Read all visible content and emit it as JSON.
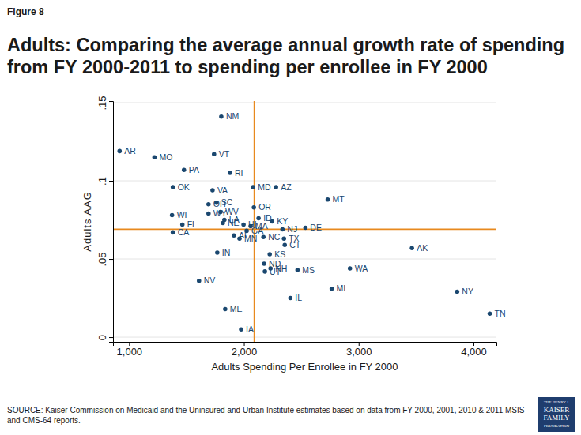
{
  "chart_data": {
    "type": "scatter",
    "figure_label": "Figure 8",
    "title": "Adults: Comparing the average annual growth rate of spending from FY 2000-2011 to spending per enrollee in FY 2000",
    "x_label": "Adults Spending Per Enrollee in FY 2000",
    "y_label": "Adults AAG",
    "source": "SOURCE: Kaiser Commission on Medicaid and the Uninsured and Urban Institute estimates based on data from FY 2000, 2001, 2010 & 2011 MSIS and CMS-64 reports.",
    "logo": [
      "THE HENRY J.",
      "KAISER",
      "FAMILY",
      "FOUNDATION"
    ],
    "color": "#1a476f",
    "marker": "circle",
    "grid": true,
    "xlim": [
      860,
      4200
    ],
    "ylim": [
      -0.003,
      0.151
    ],
    "xticks": [
      {
        "value": 1000,
        "label": "1,000"
      },
      {
        "value": 2000,
        "label": "2,000"
      },
      {
        "value": 3000,
        "label": "3,000"
      },
      {
        "value": 4000,
        "label": "4,000"
      }
    ],
    "yticks": [
      0,
      {
        "value": 0.05,
        "label": ".05"
      },
      {
        "value": 0.1,
        "label": ".1"
      },
      {
        "value": 0.15,
        "label": ".15"
      }
    ],
    "x_reference": 2090,
    "y_reference": 0.069,
    "point_labels": [
      "AR",
      "MO",
      "PA",
      "OK",
      "VT",
      "NM",
      "RI",
      "VA",
      "MD",
      "AZ",
      "MT",
      "OR",
      "OH",
      "SC",
      "WV",
      "WY",
      "WI",
      "FL",
      "CA",
      "LA",
      "NE",
      "ID",
      "KY",
      "HI",
      "MA",
      "GA",
      "AL",
      "MN",
      "NC",
      "TX",
      "CT",
      "DE",
      "NJ",
      "KS",
      "ND",
      "NH",
      "UT",
      "MS",
      "IN",
      "NV",
      "ME",
      "IA",
      "IL",
      "MI",
      "AK",
      "WA",
      "NY",
      "TN"
    ],
    "x": [
      917,
      1221,
      1478,
      1381,
      1740,
      1803,
      1879,
      1727,
      2080,
      2280,
      2730,
      2087,
      1692,
      1761,
      1796,
      1692,
      1374,
      1464,
      1381,
      1830,
      1817,
      2128,
      2246,
      1997,
      2059,
      2024,
      1913,
      1962,
      2170,
      2349,
      2356,
      2536,
      2336,
      2225,
      2176,
      2232,
      2183,
      2467,
      1768,
      1609,
      1837,
      1976,
      2405,
      2765,
      3464,
      2924,
      3858,
      4142
    ],
    "values": [
      0.119,
      0.115,
      0.107,
      0.096,
      0.117,
      0.141,
      0.105,
      0.094,
      0.096,
      0.096,
      0.088,
      0.083,
      0.085,
      0.086,
      0.08,
      0.079,
      0.078,
      0.072,
      0.067,
      0.075,
      0.073,
      0.076,
      0.074,
      0.072,
      0.071,
      0.068,
      0.065,
      0.063,
      0.064,
      0.063,
      0.059,
      0.07,
      0.069,
      0.053,
      0.047,
      0.044,
      0.042,
      0.043,
      0.054,
      0.036,
      0.018,
      0.005,
      0.025,
      0.031,
      0.057,
      0.044,
      0.029,
      0.015
    ]
  }
}
